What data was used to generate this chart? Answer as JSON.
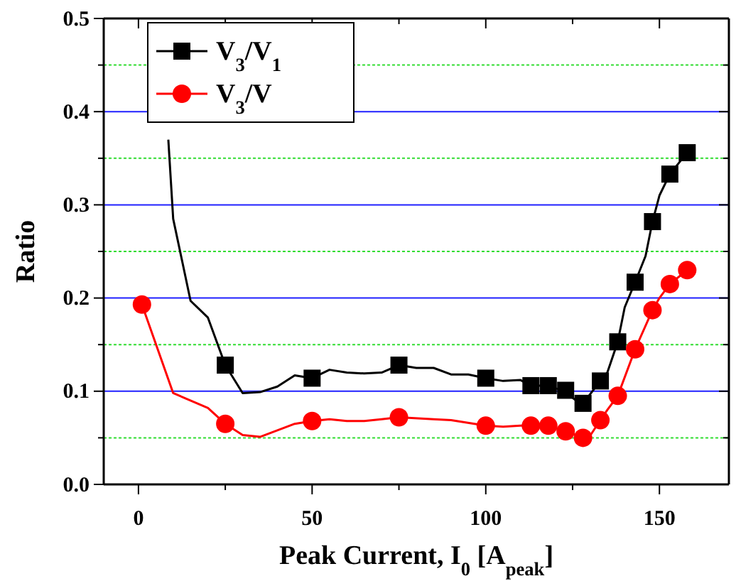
{
  "chart_data": {
    "type": "line",
    "xlabel": "Peak Current, I$_{0}$ [A$_{peak}$]",
    "ylabel": "Ratio",
    "xlim": [
      -10,
      170
    ],
    "xticks": [
      0,
      {
        "value": 25,
        "label": null
      },
      50,
      {
        "value": 75,
        "label": null
      },
      100,
      {
        "value": 125,
        "label": null
      },
      150
    ],
    "ylim": [
      0,
      0.5
    ],
    "yticks": [
      {
        "value": 0,
        "label": "0.0"
      },
      {
        "value": 0.05,
        "label": null
      },
      0.1,
      {
        "value": 0.15,
        "label": null
      },
      0.2,
      {
        "value": 0.25,
        "label": null
      },
      0.3,
      {
        "value": 0.35,
        "label": null
      },
      0.4,
      {
        "value": 0.45,
        "label": null
      },
      0.5
    ],
    "grid": "y",
    "legend": "top left",
    "line_style": "solid",
    "series": [
      {
        "name": "V$_{3}$/V$_{1}$",
        "type": "line",
        "color": "#000000",
        "marker": "none",
        "x": [
          8.6,
          10,
          15,
          20,
          25,
          30,
          35,
          40,
          45,
          50,
          55,
          60,
          65,
          70,
          75,
          80,
          85,
          90,
          95,
          100,
          105,
          110,
          113,
          118,
          120,
          123,
          125,
          126,
          128,
          133,
          135,
          138,
          140,
          143,
          146,
          148,
          150,
          153,
          158
        ],
        "values": [
          0.37,
          0.285,
          0.197,
          0.179,
          0.128,
          0.098,
          0.099,
          0.105,
          0.117,
          0.114,
          0.123,
          0.12,
          0.119,
          0.12,
          0.128,
          0.125,
          0.125,
          0.118,
          0.118,
          0.114,
          0.111,
          0.112,
          0.106,
          0.106,
          0.103,
          0.101,
          0.093,
          0.09,
          0.087,
          0.111,
          0.12,
          0.153,
          0.19,
          0.217,
          0.245,
          0.282,
          0.31,
          0.333,
          0.356
        ]
      },
      {
        "type": "scatter",
        "color": "#000000",
        "marker": "square",
        "x": [
          25,
          50,
          75,
          100,
          113,
          118,
          123,
          128,
          133,
          138,
          143,
          148,
          153,
          158
        ],
        "values": [
          0.128,
          0.114,
          0.128,
          0.114,
          0.106,
          0.106,
          0.101,
          0.087,
          0.111,
          0.153,
          0.217,
          0.282,
          0.333,
          0.356
        ]
      },
      {
        "name": "V$_{3}$/V",
        "type": "line",
        "color": "#ff0000",
        "marker": "none",
        "x": [
          1,
          10,
          20,
          25,
          30,
          35,
          40,
          45,
          50,
          55,
          60,
          65,
          70,
          75,
          85,
          90,
          100,
          105,
          110,
          113,
          118,
          123,
          128,
          130,
          133,
          135,
          138,
          143,
          148,
          150,
          153,
          158
        ],
        "values": [
          0.193,
          0.098,
          0.082,
          0.065,
          0.053,
          0.051,
          0.058,
          0.065,
          0.068,
          0.07,
          0.068,
          0.068,
          0.07,
          0.072,
          0.07,
          0.069,
          0.063,
          0.062,
          0.063,
          0.063,
          0.063,
          0.057,
          0.05,
          0.052,
          0.069,
          0.08,
          0.095,
          0.145,
          0.187,
          0.2,
          0.215,
          0.23
        ]
      },
      {
        "type": "scatter",
        "color": "#ff0000",
        "marker": "circle",
        "x": [
          1,
          25,
          50,
          75,
          100,
          113,
          118,
          123,
          128,
          133,
          138,
          143,
          148,
          153,
          158
        ],
        "values": [
          0.193,
          0.065,
          0.068,
          0.072,
          0.063,
          0.063,
          0.063,
          0.057,
          0.05,
          0.069,
          0.095,
          0.145,
          0.187,
          0.215,
          0.23
        ]
      }
    ]
  }
}
